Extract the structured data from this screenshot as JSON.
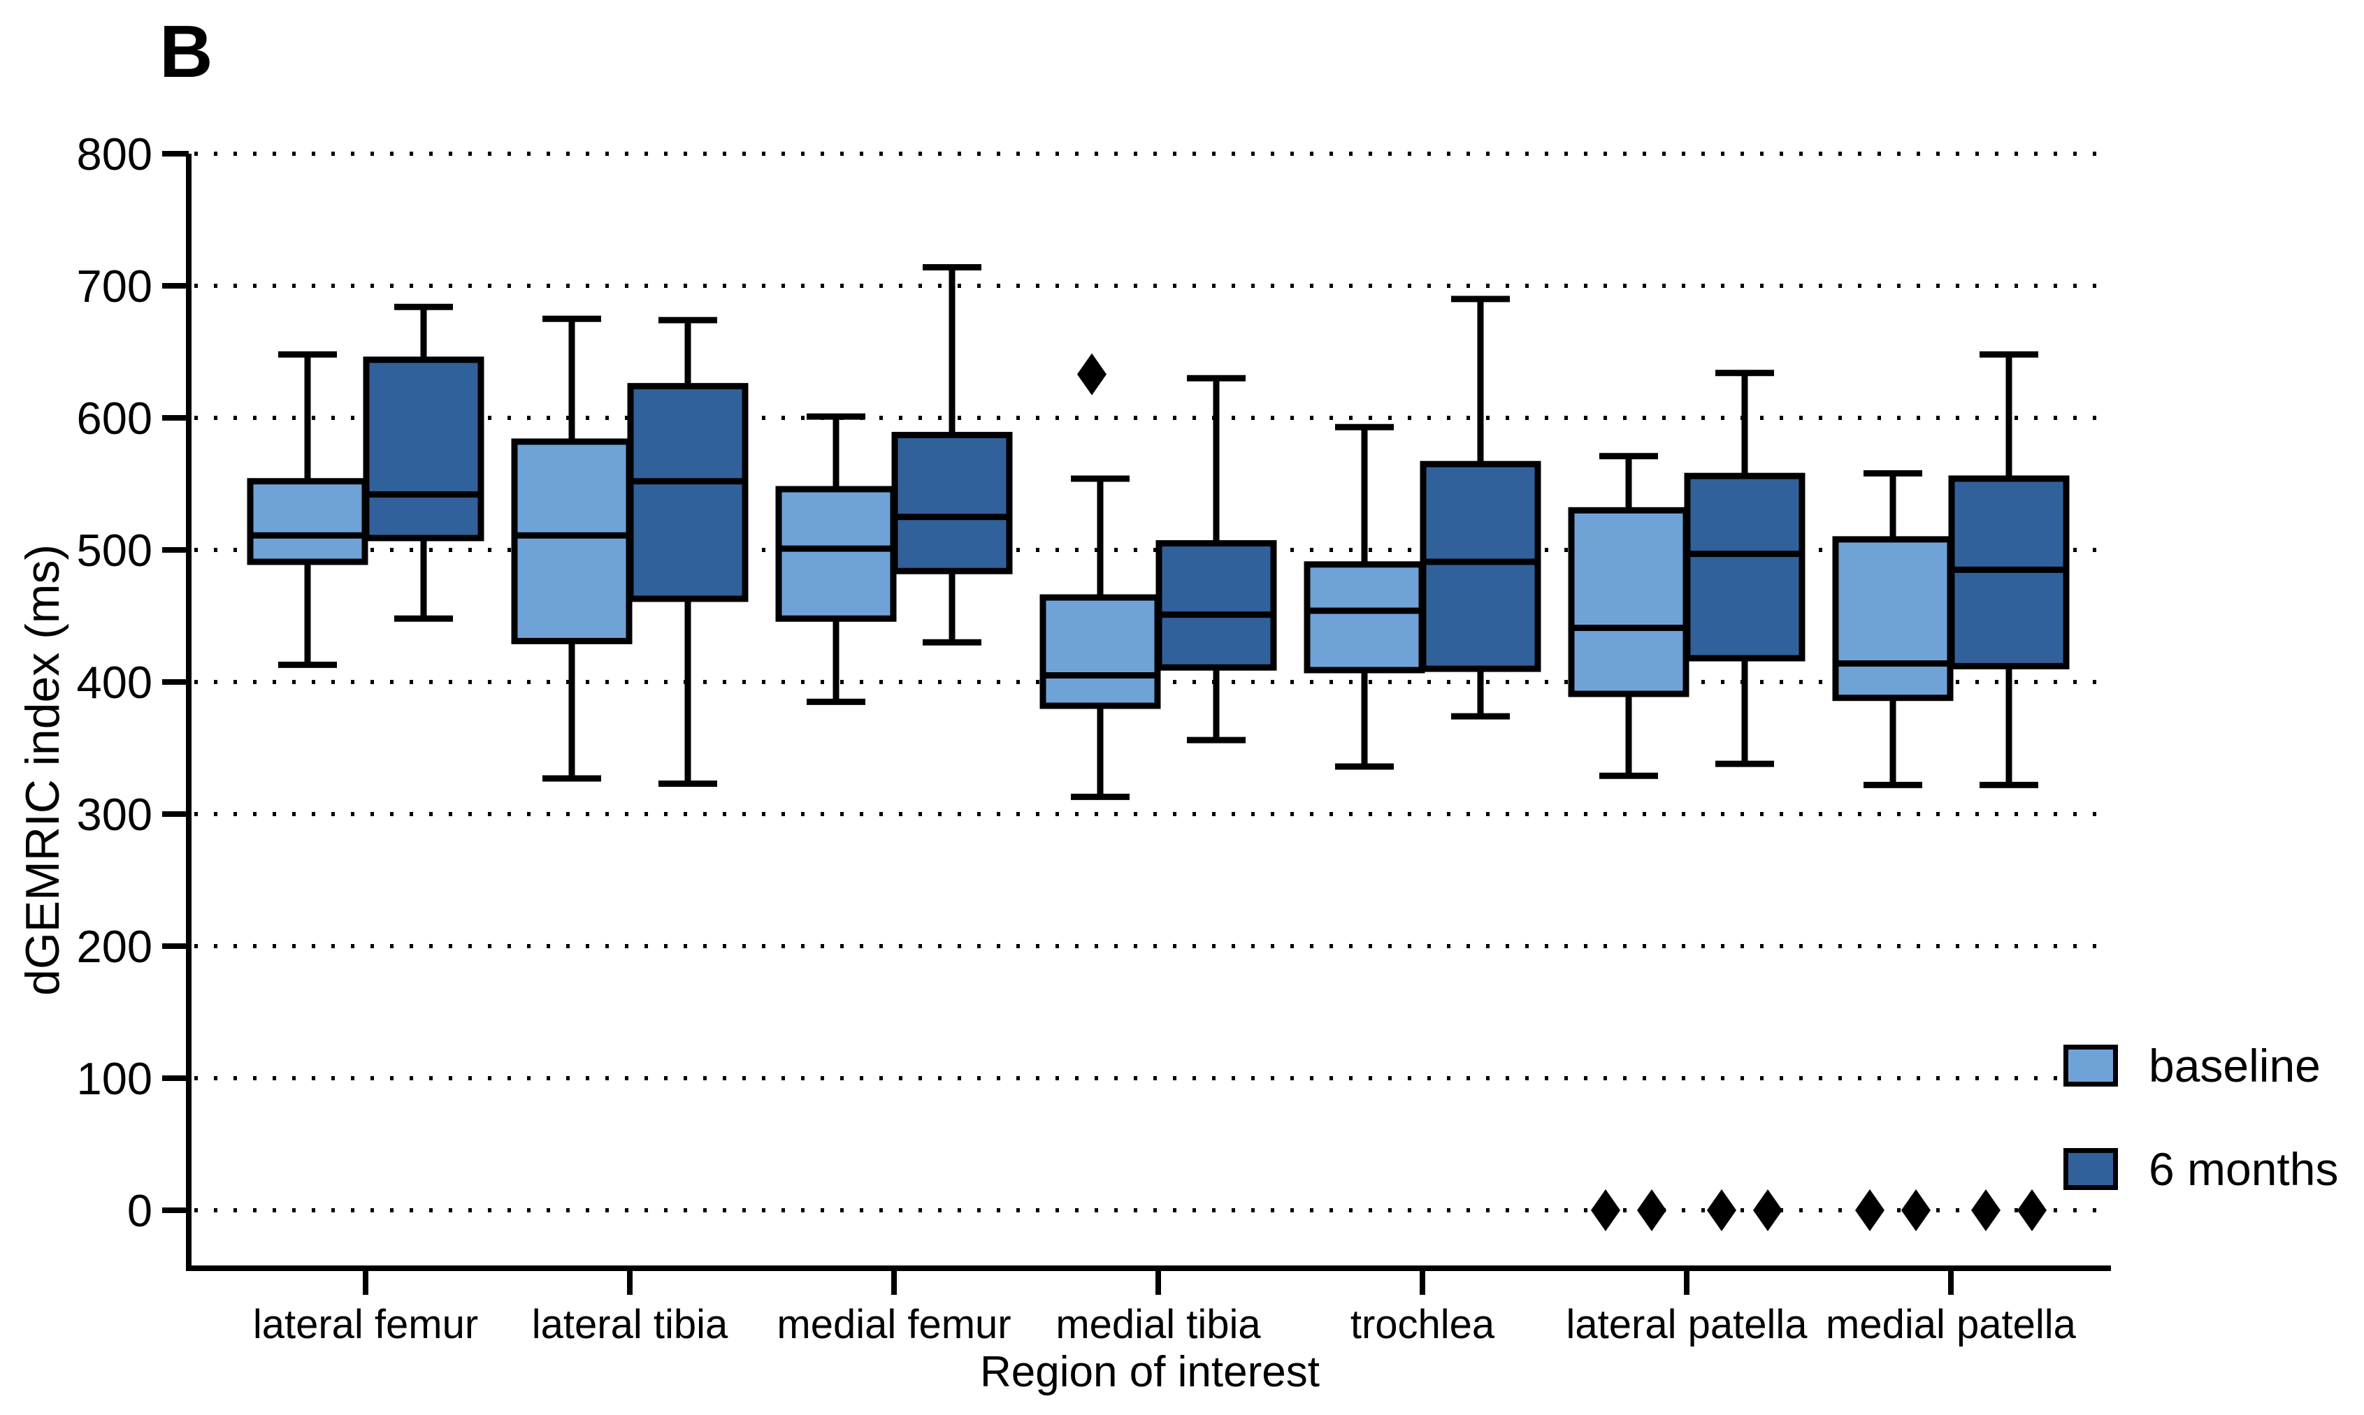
{
  "panel_label": "B",
  "chart_data": {
    "type": "box",
    "title": "",
    "xlabel": "Region of interest",
    "ylabel": "dGEMRIC index (ms)",
    "ylim": [
      0,
      800
    ],
    "yticks": [
      0,
      100,
      200,
      300,
      400,
      500,
      600,
      700,
      800
    ],
    "grid": "horizontal-dotted",
    "legend_position": "lower right",
    "categories": [
      "lateral femur",
      "lateral tibia",
      "medial femur",
      "medial tibia",
      "trochlea",
      "lateral patella",
      "medial patella"
    ],
    "series": [
      {
        "name": "baseline",
        "color": "#6FA3D7",
        "boxes": [
          {
            "low": 413,
            "q1": 491,
            "median": 511,
            "q3": 552,
            "high": 648,
            "outliers": []
          },
          {
            "low": 327,
            "q1": 431,
            "median": 511,
            "q3": 582,
            "high": 675,
            "outliers": []
          },
          {
            "low": 385,
            "q1": 448,
            "median": 501,
            "q3": 546,
            "high": 601,
            "outliers": []
          },
          {
            "low": 313,
            "q1": 382,
            "median": 405,
            "q3": 464,
            "high": 554,
            "outliers": [
              633
            ]
          },
          {
            "low": 336,
            "q1": 409,
            "median": 454,
            "q3": 489,
            "high": 593,
            "outliers": []
          },
          {
            "low": 329,
            "q1": 391,
            "median": 441,
            "q3": 530,
            "high": 571,
            "outliers": []
          },
          {
            "low": 322,
            "q1": 388,
            "median": 414,
            "q3": 508,
            "high": 558,
            "outliers": []
          }
        ]
      },
      {
        "name": "6 months",
        "color": "#31619B",
        "boxes": [
          {
            "low": 448,
            "q1": 509,
            "median": 542,
            "q3": 644,
            "high": 684,
            "outliers": []
          },
          {
            "low": 323,
            "q1": 463,
            "median": 552,
            "q3": 624,
            "high": 674,
            "outliers": []
          },
          {
            "low": 430,
            "q1": 484,
            "median": 525,
            "q3": 587,
            "high": 714,
            "outliers": []
          },
          {
            "low": 356,
            "q1": 411,
            "median": 451,
            "q3": 505,
            "high": 630,
            "outliers": []
          },
          {
            "low": 374,
            "q1": 410,
            "median": 491,
            "q3": 565,
            "high": 690,
            "outliers": []
          },
          {
            "low": 338,
            "q1": 418,
            "median": 497,
            "q3": 556,
            "high": 634,
            "outliers": []
          },
          {
            "low": 322,
            "q1": 412,
            "median": 485,
            "q3": 554,
            "high": 648,
            "outliers": []
          }
        ]
      }
    ],
    "zero_markers": [
      {
        "category": "lateral patella",
        "series": "baseline",
        "values": [
          0,
          0
        ]
      },
      {
        "category": "lateral patella",
        "series": "6 months",
        "values": [
          0,
          0
        ]
      },
      {
        "category": "medial patella",
        "series": "baseline",
        "values": [
          0,
          0
        ]
      },
      {
        "category": "medial patella",
        "series": "6 months",
        "values": [
          0,
          0
        ]
      }
    ]
  }
}
